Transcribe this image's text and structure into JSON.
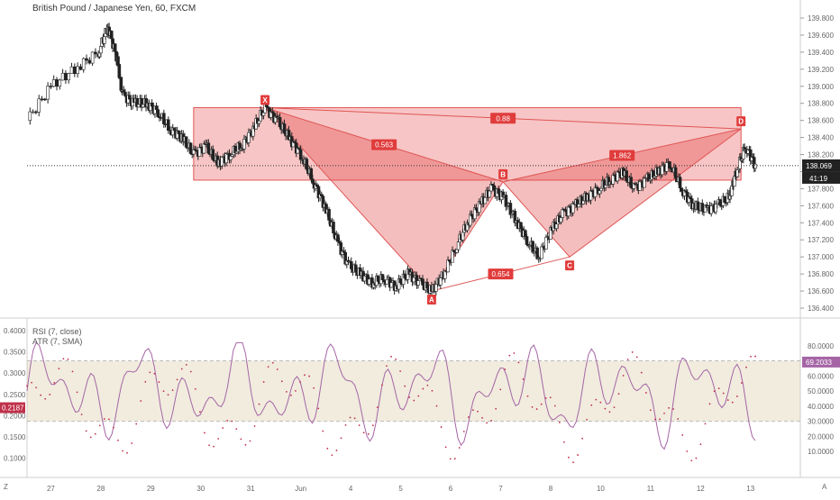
{
  "chart_data": {
    "type": "candlestick",
    "title": "British Pound / Japanese Yen, 60, FXCM",
    "price_axis": {
      "ticks": [
        "139.800",
        "139.600",
        "139.400",
        "139.200",
        "139.000",
        "138.800",
        "138.600",
        "138.400",
        "138.200",
        "138.000",
        "137.800",
        "137.600",
        "137.400",
        "137.200",
        "137.000",
        "136.800",
        "136.600",
        "136.400"
      ],
      "ylim": [
        136.4,
        139.8
      ]
    },
    "time_axis": {
      "ticks": [
        "27",
        "28",
        "29",
        "30",
        "31",
        "Jun",
        "4",
        "5",
        "6",
        "7",
        "8",
        "10",
        "11",
        "12",
        "13"
      ]
    },
    "current_price": {
      "value": "138.069",
      "countdown": "41:19"
    },
    "price_path": [
      [
        0,
        138.6
      ],
      [
        1,
        139.0
      ],
      [
        2,
        139.2
      ],
      [
        3,
        139.4
      ],
      [
        3.4,
        139.7
      ],
      [
        3.8,
        139.3
      ],
      [
        4,
        138.9
      ],
      [
        4.5,
        138.8
      ],
      [
        5,
        138.8
      ],
      [
        5.5,
        138.7
      ],
      [
        6,
        138.5
      ],
      [
        6.5,
        138.4
      ],
      [
        7,
        138.2
      ],
      [
        7.5,
        138.3
      ],
      [
        8,
        138.1
      ],
      [
        8.5,
        138.2
      ],
      [
        9,
        138.3
      ],
      [
        9.5,
        138.5
      ],
      [
        10,
        138.75
      ],
      [
        10.5,
        138.6
      ],
      [
        11,
        138.4
      ],
      [
        11.5,
        138.2
      ],
      [
        12,
        137.9
      ],
      [
        12.5,
        137.6
      ],
      [
        13,
        137.2
      ],
      [
        13.5,
        136.9
      ],
      [
        14,
        136.8
      ],
      [
        14.5,
        136.7
      ],
      [
        15,
        136.75
      ],
      [
        15.5,
        136.65
      ],
      [
        16,
        136.8
      ],
      [
        16.5,
        136.7
      ],
      [
        17,
        136.6
      ],
      [
        17.5,
        136.8
      ],
      [
        18,
        137.1
      ],
      [
        18.5,
        137.4
      ],
      [
        19,
        137.6
      ],
      [
        19.5,
        137.8
      ],
      [
        20,
        137.7
      ],
      [
        20.5,
        137.45
      ],
      [
        21,
        137.2
      ],
      [
        21.5,
        137.0
      ],
      [
        22,
        137.3
      ],
      [
        22.5,
        137.5
      ],
      [
        23,
        137.6
      ],
      [
        23.5,
        137.7
      ],
      [
        24,
        137.8
      ],
      [
        24.5,
        137.9
      ],
      [
        25,
        138.0
      ],
      [
        25.5,
        137.8
      ],
      [
        26,
        137.9
      ],
      [
        26.5,
        138.0
      ],
      [
        27,
        138.1
      ],
      [
        27.5,
        137.8
      ],
      [
        28,
        137.6
      ],
      [
        28.5,
        137.55
      ],
      [
        29,
        137.6
      ],
      [
        29.5,
        137.7
      ],
      [
        29.8,
        138.0
      ],
      [
        30.2,
        138.3
      ],
      [
        30.6,
        138.069
      ]
    ],
    "harmonic_pattern": {
      "points": [
        {
          "label": "X",
          "x": 10.0,
          "y": 138.75
        },
        {
          "label": "A",
          "x": 17.0,
          "y": 136.6
        },
        {
          "label": "B",
          "x": 20.0,
          "y": 137.88
        },
        {
          "label": "C",
          "x": 22.8,
          "y": 137.0
        },
        {
          "label": "D",
          "x": 30.0,
          "y": 138.5
        }
      ],
      "ratios": [
        "0.563",
        "0.654",
        "1.862",
        "0.88"
      ],
      "zone": {
        "x_from": 7.0,
        "x_to": 30.0,
        "y_from": 137.9,
        "y_to": 138.75
      }
    },
    "indicators": {
      "rsi": {
        "name": "RSI (7, close)",
        "value": "69.2033",
        "ticks": [
          "80.0000",
          "70.0000",
          "60.0000",
          "50.0000",
          "40.0000",
          "30.0000",
          "20.0000",
          "10.0000"
        ],
        "overbought": 70,
        "oversold": 30,
        "ylim": [
          0,
          90
        ]
      },
      "atr": {
        "name": "ATR (7, SMA)",
        "value": "0.2187",
        "ticks": [
          "0.4000",
          "0.3500",
          "0.3000",
          "0.2500",
          "0.2000",
          "0.1500",
          "0.1000"
        ],
        "ylim": [
          0.08,
          0.4
        ]
      }
    }
  },
  "corners": {
    "top_left": "Z",
    "bottom_right": "A"
  }
}
